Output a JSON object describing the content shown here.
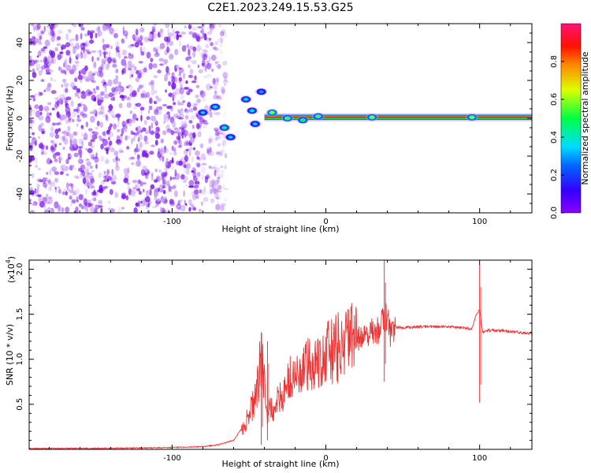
{
  "title": "C2E1.2023.249.15.53.G25",
  "chart_data": [
    {
      "type": "heatmap",
      "xlabel": "Height of straight line (km)",
      "ylabel": "Frequency (Hz)",
      "xlim": [
        -193,
        134
      ],
      "ylim": [
        -50,
        50
      ],
      "xticks": [
        -100,
        0,
        100
      ],
      "xtick_labels": [
        "-100",
        "0",
        "100"
      ],
      "yticks": [
        -40,
        -20,
        0,
        20,
        40
      ],
      "ytick_labels": [
        "-40",
        "-20",
        "0",
        "20",
        "40"
      ],
      "colorbar": {
        "label": "Normalized spectral amplitude",
        "range": [
          0,
          1
        ],
        "ticks": [
          0.0,
          0.2,
          0.4,
          0.6,
          0.8
        ],
        "tick_labels": [
          "0.0",
          "0.2",
          "0.4",
          "0.6",
          "0.8"
        ],
        "colormap": "rainbow (purple → blue → cyan → green → yellow → red → magenta)"
      },
      "noise_region_x": [
        -193,
        -70
      ],
      "signal_line": {
        "x_start": -40,
        "x_end": 134,
        "frequency": 0.5,
        "amplitude": 0.85
      },
      "features": [
        {
          "x": -80,
          "y": 3,
          "amplitude": 0.35
        },
        {
          "x": -72,
          "y": 6,
          "amplitude": 0.4
        },
        {
          "x": -66,
          "y": -5,
          "amplitude": 0.45
        },
        {
          "x": -62,
          "y": -10,
          "amplitude": 0.35
        },
        {
          "x": -52,
          "y": 10,
          "amplitude": 0.4
        },
        {
          "x": -48,
          "y": 4,
          "amplitude": 0.4
        },
        {
          "x": -46,
          "y": -3,
          "amplitude": 0.35
        },
        {
          "x": -42,
          "y": 14,
          "amplitude": 0.3
        },
        {
          "x": -35,
          "y": 3,
          "amplitude": 0.6
        },
        {
          "x": -25,
          "y": 0,
          "amplitude": 0.55
        },
        {
          "x": -15,
          "y": -1,
          "amplitude": 0.5
        },
        {
          "x": -5,
          "y": 1,
          "amplitude": 0.55
        },
        {
          "x": 30,
          "y": 0.5,
          "amplitude": 0.6
        },
        {
          "x": 95,
          "y": 0.5,
          "amplitude": 0.6
        }
      ]
    },
    {
      "type": "line",
      "xlabel": "Height of straight line (km)",
      "ylabel": "SNR (10 * v/v)",
      "y_multiplier": "(x10⁴)",
      "y_multiplier_base": "(x10",
      "y_multiplier_exp": "4",
      "y_multiplier_close": ")",
      "xlim": [
        -193,
        134
      ],
      "ylim": [
        0,
        2.1
      ],
      "xticks": [
        -100,
        0,
        100
      ],
      "xtick_labels": [
        "-100",
        "0",
        "100"
      ],
      "yticks": [
        0.5,
        1.0,
        1.5,
        2.0
      ],
      "ytick_labels": [
        "0.5",
        "1.0",
        "1.5",
        "2.0"
      ],
      "color": "#ee3333",
      "series": [
        {
          "x": [
            -193,
            -150,
            -100,
            -80,
            -70,
            -60,
            -52,
            -45,
            -42,
            -38,
            -35,
            -30,
            -25,
            -20,
            -15,
            -10,
            -5,
            0,
            5,
            10,
            15,
            20,
            25,
            30,
            35,
            38,
            40,
            42,
            45,
            50,
            60,
            70,
            80,
            90,
            95,
            98,
            100,
            102,
            105,
            110,
            120,
            134
          ],
          "y": [
            0.01,
            0.01,
            0.02,
            0.03,
            0.05,
            0.1,
            0.3,
            0.6,
            1.05,
            0.4,
            0.45,
            0.55,
            0.75,
            0.8,
            0.85,
            0.95,
            1.0,
            1.05,
            1.1,
            1.15,
            1.2,
            1.22,
            1.26,
            1.3,
            1.33,
            1.45,
            1.5,
            1.25,
            1.36,
            1.35,
            1.36,
            1.36,
            1.36,
            1.35,
            1.34,
            1.5,
            1.55,
            1.3,
            1.32,
            1.32,
            1.31,
            1.28
          ]
        }
      ],
      "spikes": [
        {
          "x": -42,
          "y_min": 0.05,
          "y_max": 1.3
        },
        {
          "x": -38,
          "y_min": 0.1,
          "y_max": 1.2
        },
        {
          "x": 38,
          "y_min": 0.75,
          "y_max": 2.1
        },
        {
          "x": 100,
          "y_min": 0.52,
          "y_max": 2.05
        }
      ]
    }
  ]
}
